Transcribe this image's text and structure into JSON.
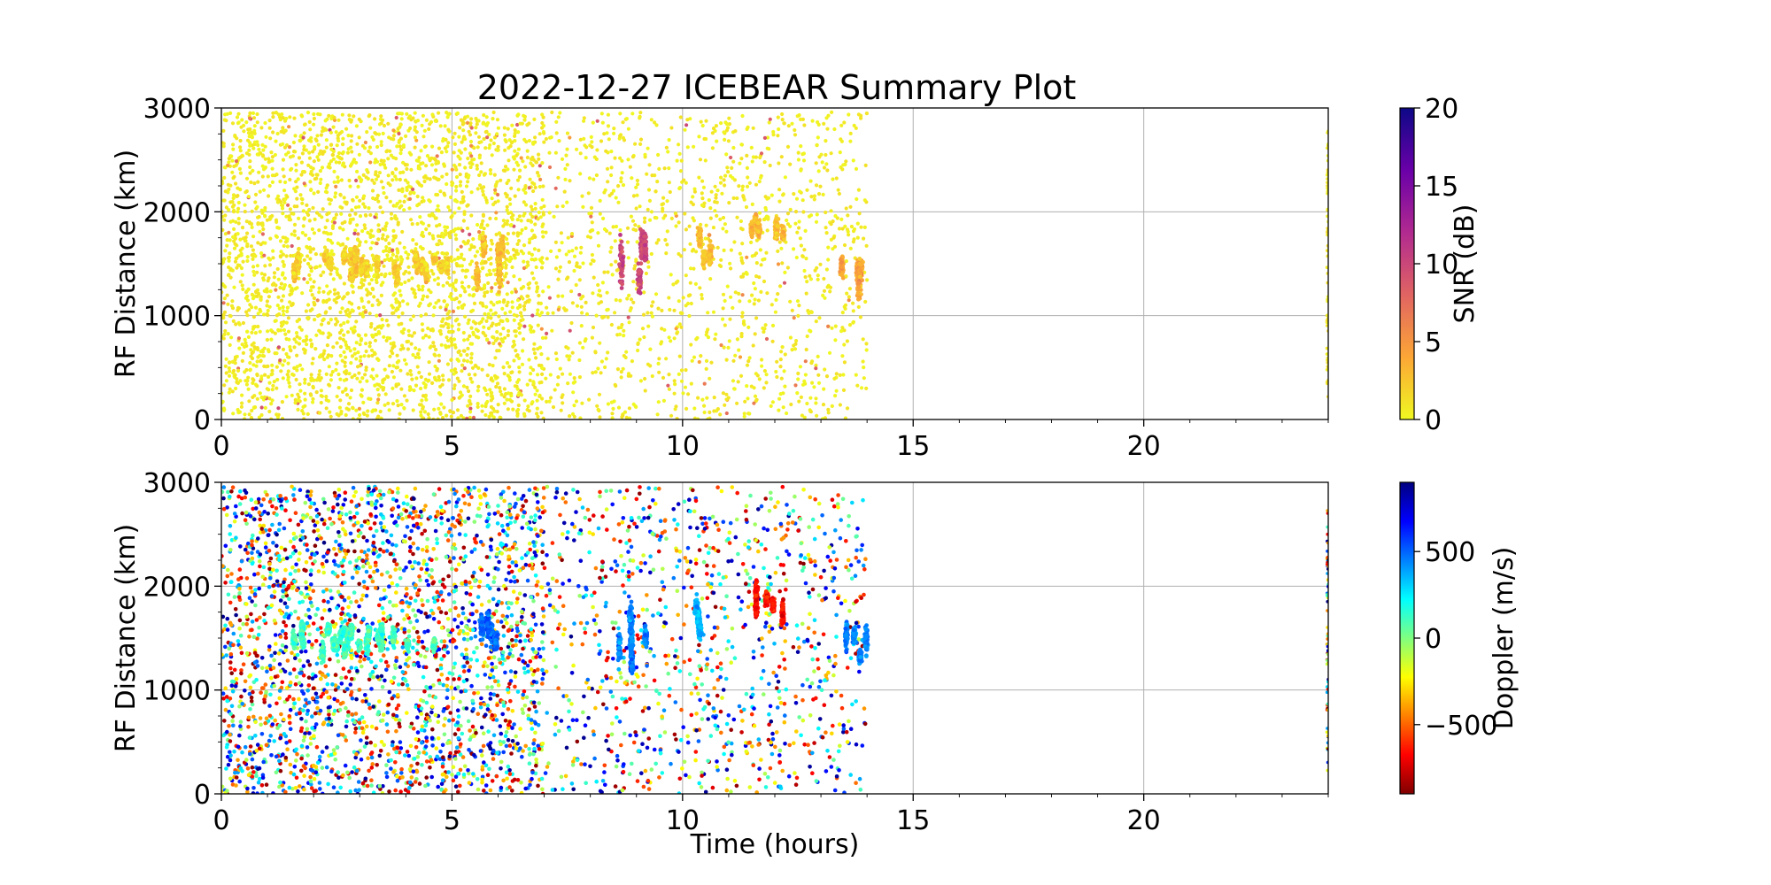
{
  "title": "2022-12-27 ICEBEAR Summary Plot",
  "chart_data": [
    {
      "type": "scatter",
      "name": "snr-panel",
      "xlabel": "",
      "ylabel": "RF Distance (km)",
      "xlim": [
        0,
        24
      ],
      "ylim": [
        0,
        3000
      ],
      "xticks": [
        "0",
        "5",
        "10",
        "15",
        "20"
      ],
      "yticks": [
        "0",
        "1000",
        "2000",
        "3000"
      ],
      "grid": true,
      "colorbar": {
        "label": "SNR (dB)",
        "colormap": "plasma_r",
        "range": [
          0,
          20
        ],
        "ticks": [
          "0",
          "5",
          "10",
          "15",
          "20"
        ],
        "colors": [
          "#f0f921",
          "#fca636",
          "#e16462",
          "#b12a90",
          "#6a00a8",
          "#0d0887"
        ]
      },
      "observation_window_hours": [
        0,
        14
      ],
      "clusters": [
        {
          "t_start": 1.5,
          "t_end": 5.0,
          "dist_min": 1250,
          "dist_max": 1700,
          "snr_db": 2
        },
        {
          "t_start": 5.5,
          "t_end": 6.3,
          "dist_min": 1150,
          "dist_max": 2000,
          "snr_db": 3
        },
        {
          "t_start": 8.6,
          "t_end": 9.3,
          "dist_min": 1000,
          "dist_max": 1950,
          "snr_db": 10
        },
        {
          "t_start": 10.2,
          "t_end": 10.6,
          "dist_min": 1250,
          "dist_max": 2000,
          "snr_db": 3
        },
        {
          "t_start": 11.5,
          "t_end": 12.3,
          "dist_min": 1600,
          "dist_max": 2100,
          "snr_db": 3
        },
        {
          "t_start": 13.4,
          "t_end": 14.0,
          "dist_min": 1000,
          "dist_max": 1800,
          "snr_db": 4
        }
      ]
    },
    {
      "type": "scatter",
      "name": "doppler-panel",
      "xlabel": "Time (hours)",
      "ylabel": "RF Distance (km)",
      "xlim": [
        0,
        24
      ],
      "ylim": [
        0,
        3000
      ],
      "xticks": [
        "0",
        "5",
        "10",
        "15",
        "20"
      ],
      "yticks": [
        "0",
        "1000",
        "2000",
        "3000"
      ],
      "grid": true,
      "colorbar": {
        "label": "Doppler (m/s)",
        "colormap": "jet_r",
        "range": [
          -900,
          900
        ],
        "ticks": [
          "−500",
          "0",
          "500"
        ],
        "tick_values": [
          -500,
          0,
          500
        ],
        "colors": [
          "#800000",
          "#ff0000",
          "#ff8000",
          "#ffff00",
          "#80ff80",
          "#00ffff",
          "#0080ff",
          "#0000ff",
          "#000080"
        ]
      },
      "observation_window_hours": [
        0,
        14
      ],
      "clusters": [
        {
          "t_start": 1.2,
          "t_end": 4.8,
          "dist_min": 1250,
          "dist_max": 1700,
          "doppler_ms": 120
        },
        {
          "t_start": 5.6,
          "t_end": 6.3,
          "dist_min": 1150,
          "dist_max": 2000,
          "doppler_ms": 500
        },
        {
          "t_start": 8.6,
          "t_end": 9.4,
          "dist_min": 1050,
          "dist_max": 1950,
          "doppler_ms": 450
        },
        {
          "t_start": 10.2,
          "t_end": 10.6,
          "dist_min": 1250,
          "dist_max": 2000,
          "doppler_ms": 350
        },
        {
          "t_start": 11.5,
          "t_end": 12.4,
          "dist_min": 1550,
          "dist_max": 2100,
          "doppler_ms": -650
        },
        {
          "t_start": 13.3,
          "t_end": 14.0,
          "dist_min": 1050,
          "dist_max": 1800,
          "doppler_ms": 450
        }
      ]
    }
  ]
}
